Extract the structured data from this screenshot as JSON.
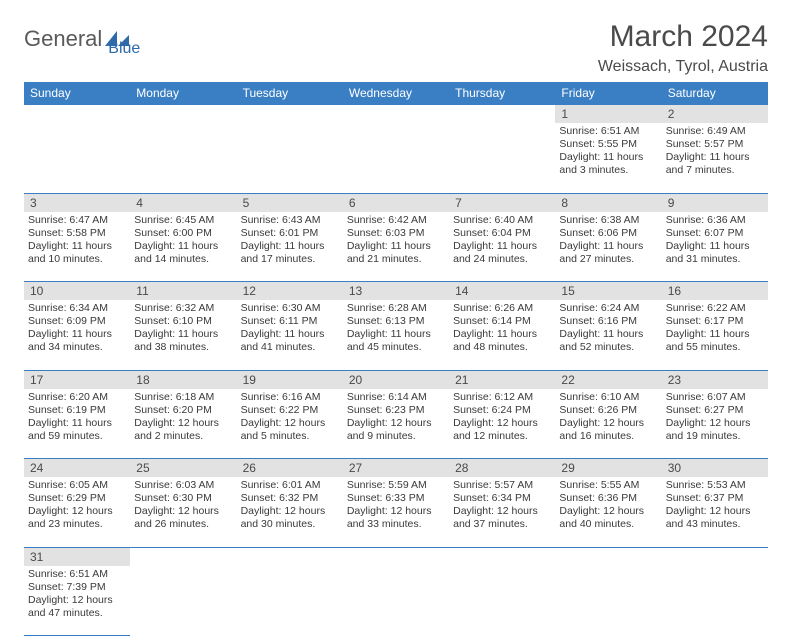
{
  "logo": {
    "text1": "General",
    "text2": "Blue"
  },
  "title": "March 2024",
  "location": "Weissach, Tyrol, Austria",
  "colors": {
    "header_bg": "#3a7fc4",
    "header_text": "#ffffff",
    "daynum_bg": "#e2e2e2",
    "border": "#3a7fc4",
    "body_text": "#3a3a3a"
  },
  "weekdays": [
    "Sunday",
    "Monday",
    "Tuesday",
    "Wednesday",
    "Thursday",
    "Friday",
    "Saturday"
  ],
  "weeks": [
    [
      null,
      null,
      null,
      null,
      null,
      {
        "n": "1",
        "sr": "Sunrise: 6:51 AM",
        "ss": "Sunset: 5:55 PM",
        "dl": "Daylight: 11 hours and 3 minutes."
      },
      {
        "n": "2",
        "sr": "Sunrise: 6:49 AM",
        "ss": "Sunset: 5:57 PM",
        "dl": "Daylight: 11 hours and 7 minutes."
      }
    ],
    [
      {
        "n": "3",
        "sr": "Sunrise: 6:47 AM",
        "ss": "Sunset: 5:58 PM",
        "dl": "Daylight: 11 hours and 10 minutes."
      },
      {
        "n": "4",
        "sr": "Sunrise: 6:45 AM",
        "ss": "Sunset: 6:00 PM",
        "dl": "Daylight: 11 hours and 14 minutes."
      },
      {
        "n": "5",
        "sr": "Sunrise: 6:43 AM",
        "ss": "Sunset: 6:01 PM",
        "dl": "Daylight: 11 hours and 17 minutes."
      },
      {
        "n": "6",
        "sr": "Sunrise: 6:42 AM",
        "ss": "Sunset: 6:03 PM",
        "dl": "Daylight: 11 hours and 21 minutes."
      },
      {
        "n": "7",
        "sr": "Sunrise: 6:40 AM",
        "ss": "Sunset: 6:04 PM",
        "dl": "Daylight: 11 hours and 24 minutes."
      },
      {
        "n": "8",
        "sr": "Sunrise: 6:38 AM",
        "ss": "Sunset: 6:06 PM",
        "dl": "Daylight: 11 hours and 27 minutes."
      },
      {
        "n": "9",
        "sr": "Sunrise: 6:36 AM",
        "ss": "Sunset: 6:07 PM",
        "dl": "Daylight: 11 hours and 31 minutes."
      }
    ],
    [
      {
        "n": "10",
        "sr": "Sunrise: 6:34 AM",
        "ss": "Sunset: 6:09 PM",
        "dl": "Daylight: 11 hours and 34 minutes."
      },
      {
        "n": "11",
        "sr": "Sunrise: 6:32 AM",
        "ss": "Sunset: 6:10 PM",
        "dl": "Daylight: 11 hours and 38 minutes."
      },
      {
        "n": "12",
        "sr": "Sunrise: 6:30 AM",
        "ss": "Sunset: 6:11 PM",
        "dl": "Daylight: 11 hours and 41 minutes."
      },
      {
        "n": "13",
        "sr": "Sunrise: 6:28 AM",
        "ss": "Sunset: 6:13 PM",
        "dl": "Daylight: 11 hours and 45 minutes."
      },
      {
        "n": "14",
        "sr": "Sunrise: 6:26 AM",
        "ss": "Sunset: 6:14 PM",
        "dl": "Daylight: 11 hours and 48 minutes."
      },
      {
        "n": "15",
        "sr": "Sunrise: 6:24 AM",
        "ss": "Sunset: 6:16 PM",
        "dl": "Daylight: 11 hours and 52 minutes."
      },
      {
        "n": "16",
        "sr": "Sunrise: 6:22 AM",
        "ss": "Sunset: 6:17 PM",
        "dl": "Daylight: 11 hours and 55 minutes."
      }
    ],
    [
      {
        "n": "17",
        "sr": "Sunrise: 6:20 AM",
        "ss": "Sunset: 6:19 PM",
        "dl": "Daylight: 11 hours and 59 minutes."
      },
      {
        "n": "18",
        "sr": "Sunrise: 6:18 AM",
        "ss": "Sunset: 6:20 PM",
        "dl": "Daylight: 12 hours and 2 minutes."
      },
      {
        "n": "19",
        "sr": "Sunrise: 6:16 AM",
        "ss": "Sunset: 6:22 PM",
        "dl": "Daylight: 12 hours and 5 minutes."
      },
      {
        "n": "20",
        "sr": "Sunrise: 6:14 AM",
        "ss": "Sunset: 6:23 PM",
        "dl": "Daylight: 12 hours and 9 minutes."
      },
      {
        "n": "21",
        "sr": "Sunrise: 6:12 AM",
        "ss": "Sunset: 6:24 PM",
        "dl": "Daylight: 12 hours and 12 minutes."
      },
      {
        "n": "22",
        "sr": "Sunrise: 6:10 AM",
        "ss": "Sunset: 6:26 PM",
        "dl": "Daylight: 12 hours and 16 minutes."
      },
      {
        "n": "23",
        "sr": "Sunrise: 6:07 AM",
        "ss": "Sunset: 6:27 PM",
        "dl": "Daylight: 12 hours and 19 minutes."
      }
    ],
    [
      {
        "n": "24",
        "sr": "Sunrise: 6:05 AM",
        "ss": "Sunset: 6:29 PM",
        "dl": "Daylight: 12 hours and 23 minutes."
      },
      {
        "n": "25",
        "sr": "Sunrise: 6:03 AM",
        "ss": "Sunset: 6:30 PM",
        "dl": "Daylight: 12 hours and 26 minutes."
      },
      {
        "n": "26",
        "sr": "Sunrise: 6:01 AM",
        "ss": "Sunset: 6:32 PM",
        "dl": "Daylight: 12 hours and 30 minutes."
      },
      {
        "n": "27",
        "sr": "Sunrise: 5:59 AM",
        "ss": "Sunset: 6:33 PM",
        "dl": "Daylight: 12 hours and 33 minutes."
      },
      {
        "n": "28",
        "sr": "Sunrise: 5:57 AM",
        "ss": "Sunset: 6:34 PM",
        "dl": "Daylight: 12 hours and 37 minutes."
      },
      {
        "n": "29",
        "sr": "Sunrise: 5:55 AM",
        "ss": "Sunset: 6:36 PM",
        "dl": "Daylight: 12 hours and 40 minutes."
      },
      {
        "n": "30",
        "sr": "Sunrise: 5:53 AM",
        "ss": "Sunset: 6:37 PM",
        "dl": "Daylight: 12 hours and 43 minutes."
      }
    ],
    [
      {
        "n": "31",
        "sr": "Sunrise: 6:51 AM",
        "ss": "Sunset: 7:39 PM",
        "dl": "Daylight: 12 hours and 47 minutes."
      },
      null,
      null,
      null,
      null,
      null,
      null
    ]
  ]
}
